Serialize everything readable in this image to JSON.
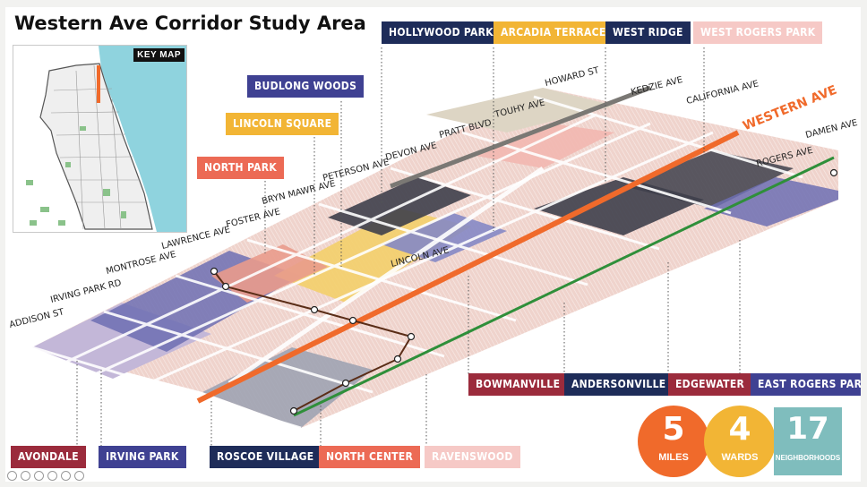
{
  "title": "Western Ave Corridor Study Area",
  "key_map": {
    "label": "KEY MAP"
  },
  "colors": {
    "western_line": "#f06a2b",
    "green_line": "#2f8f3a",
    "brown_line": "#5a2d17",
    "background_pink": "#f1c6bd",
    "lake": "#8fd3de"
  },
  "neighborhood_tags": [
    {
      "name": "HOLLYWOOD PARK",
      "color": "#1e2c59"
    },
    {
      "name": "ARCADIA TERRACE",
      "color": "#f2b535"
    },
    {
      "name": "WEST RIDGE",
      "color": "#1e2c59"
    },
    {
      "name": "WEST ROGERS PARK",
      "color": "#f6c9c6"
    },
    {
      "name": "BUDLONG WOODS",
      "color": "#3f4192"
    },
    {
      "name": "LINCOLN SQUARE",
      "color": "#f2b535"
    },
    {
      "name": "NORTH PARK",
      "color": "#ec6a55"
    },
    {
      "name": "BOWMANVILLE",
      "color": "#9b2b3c"
    },
    {
      "name": "ANDERSONVILLE",
      "color": "#1e2c59"
    },
    {
      "name": "EDGEWATER",
      "color": "#9b2b3c"
    },
    {
      "name": "EAST ROGERS PARK",
      "color": "#3f4192"
    },
    {
      "name": "AVONDALE",
      "color": "#9b2b3c"
    },
    {
      "name": "IRVING PARK",
      "color": "#3f4192"
    },
    {
      "name": "ROSCOE VILLAGE",
      "color": "#1e2c59"
    },
    {
      "name": "NORTH CENTER",
      "color": "#ec6a55"
    },
    {
      "name": "RAVENSWOOD",
      "color": "#f6c9c6"
    }
  ],
  "streets": {
    "howard": "HOWARD ST",
    "kedzie": "KEDZIE AVE",
    "california": "CALIFORNIA AVE",
    "western": "WESTERN AVE",
    "damen": "DAMEN AVE",
    "touhy": "TOUHY AVE",
    "pratt": "PRATT BLVD",
    "devon": "DEVON AVE",
    "peterson": "PETERSON AVE",
    "bryn_mawr": "BRYN MAWR AVE",
    "foster": "FOSTER AVE",
    "lawrence": "LAWRENCE AVE",
    "montrose": "MONTROSE AVE",
    "irving_park": "IRVING PARK RD",
    "addison": "ADDISON ST",
    "lincoln": "LINCOLN AVE",
    "rogers": "ROGERS AVE"
  },
  "stats": [
    {
      "value": "5",
      "label": "MILES",
      "color": "#f06a2b"
    },
    {
      "value": "4",
      "label": "WARDS",
      "color": "#f2b535"
    },
    {
      "value": "17",
      "label": "NEIGHBORHOODS",
      "color": "#7fbdbd"
    }
  ]
}
